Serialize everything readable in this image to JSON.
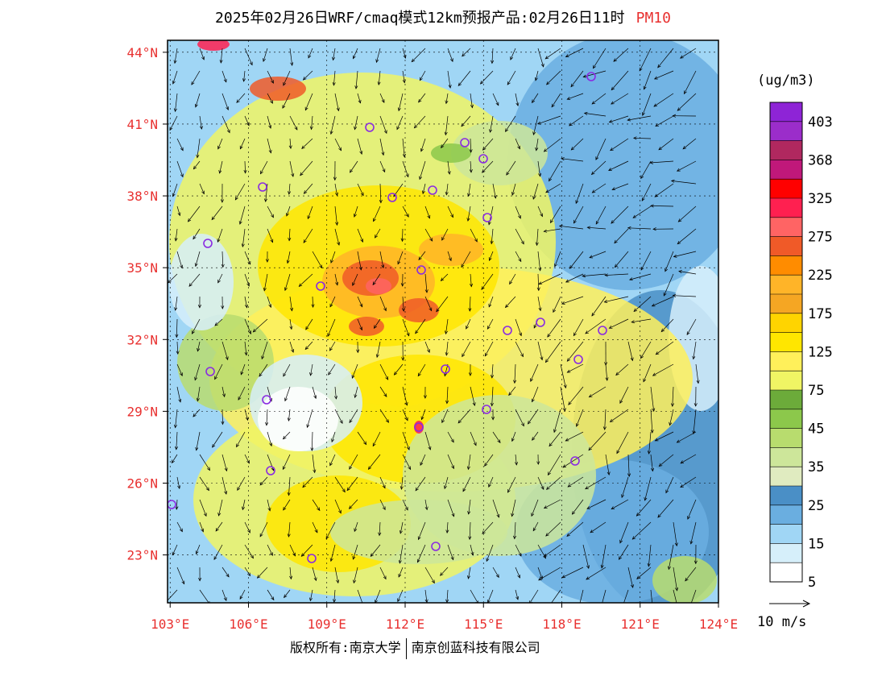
{
  "title": {
    "main": "2025年02月26日WRF/cmaq模式12km预报产品:02月26日11时",
    "pollutant": "PM10"
  },
  "unit": "(ug/m3)",
  "colors": {
    "axis_label": "#e8302f",
    "city_marker": "#8a2be2"
  },
  "map": {
    "lat_labels": [
      "44°N",
      "41°N",
      "38°N",
      "35°N",
      "32°N",
      "29°N",
      "26°N",
      "23°N"
    ],
    "lon_labels": [
      "103°E",
      "106°E",
      "109°E",
      "112°E",
      "115°E",
      "118°E",
      "121°E",
      "124°E"
    ],
    "lat_range": [
      21.0,
      44.5
    ],
    "lon_range": [
      102.9,
      124.0
    ]
  },
  "legend": {
    "labels": [
      "403",
      "368",
      "325",
      "275",
      "225",
      "175",
      "125",
      "75",
      "45",
      "35",
      "25",
      "15",
      "5"
    ],
    "colors": [
      "#8e24d6",
      "#9b2dca",
      "#b0285f",
      "#c0187a",
      "#ff0000",
      "#ff2050",
      "#ff6464",
      "#f05a28",
      "#ff8c00",
      "#ffb428",
      "#f5a623",
      "#ffd400",
      "#ffe600",
      "#fff05a",
      "#f0f564",
      "#6cab3a",
      "#8cc84b",
      "#b8dc6e",
      "#cde69a",
      "#e0ebc0",
      "#4a8fc6",
      "#6aaee0",
      "#a0d6f5",
      "#d6effa",
      "#ffffff"
    ]
  },
  "wind_reference": "10 m/s",
  "footer": {
    "copyright": "版权所有:南京大学",
    "company": "南京创蓝科技有限公司"
  }
}
